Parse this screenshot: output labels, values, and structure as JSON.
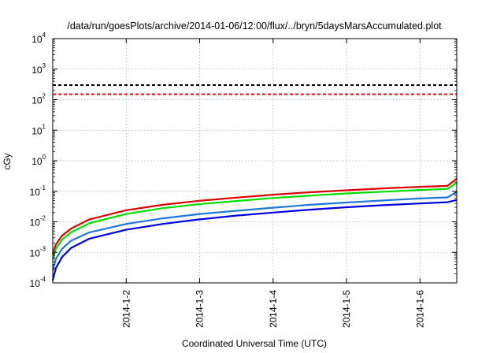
{
  "chart_data": {
    "type": "line",
    "title": "/data/run/goesPlots/archive/2014-01-06/12:00/flux/../bryn/5daysMarsAccumulated.plot",
    "xlabel": "Coordinated Universal Time (UTC)",
    "ylabel": "cGy",
    "yscale": "log",
    "ylim": [
      0.0001,
      10000
    ],
    "ytick_labels": [
      {
        "base": "10",
        "exp": "-4",
        "value": 0.0001
      },
      {
        "base": "10",
        "exp": "-3",
        "value": 0.001
      },
      {
        "base": "10",
        "exp": "-2",
        "value": 0.01
      },
      {
        "base": "10",
        "exp": "-1",
        "value": 0.1
      },
      {
        "base": "10",
        "exp": "0",
        "value": 1
      },
      {
        "base": "10",
        "exp": "1",
        "value": 10
      },
      {
        "base": "10",
        "exp": "2",
        "value": 100
      },
      {
        "base": "10",
        "exp": "3",
        "value": 1000
      },
      {
        "base": "10",
        "exp": "4",
        "value": 10000
      }
    ],
    "xlim": [
      "2014-01-01T00:00",
      "2014-01-06T12:00"
    ],
    "xticks": [
      {
        "label": "2014-1-2",
        "value": "2014-01-02T00:00"
      },
      {
        "label": "2014-1-3",
        "value": "2014-01-03T00:00"
      },
      {
        "label": "2014-1-4",
        "value": "2014-01-04T00:00"
      },
      {
        "label": "2014-1-5",
        "value": "2014-01-05T00:00"
      },
      {
        "label": "2014-1-6",
        "value": "2014-01-06T00:00"
      }
    ],
    "grid": true,
    "legend": "none",
    "threshold_lines": [
      {
        "value": 300,
        "color": "#000000",
        "style": "dashed"
      },
      {
        "value": 150,
        "color": "#ff0000",
        "style": "dashed"
      }
    ],
    "series": [
      {
        "color": "#dd0000",
        "x": [
          "2014-01-01T00:00",
          "2014-01-01T01:00",
          "2014-01-01T03:00",
          "2014-01-01T06:00",
          "2014-01-01T12:00",
          "2014-01-02T00:00",
          "2014-01-02T12:00",
          "2014-01-03T00:00",
          "2014-01-03T12:00",
          "2014-01-04T00:00",
          "2014-01-04T12:00",
          "2014-01-05T00:00",
          "2014-01-05T12:00",
          "2014-01-06T00:00",
          "2014-01-06T09:00",
          "2014-01-06T12:00"
        ],
        "y": [
          0.0009,
          0.0018,
          0.0035,
          0.006,
          0.012,
          0.024,
          0.036,
          0.049,
          0.062,
          0.077,
          0.093,
          0.108,
          0.124,
          0.14,
          0.15,
          0.26
        ]
      },
      {
        "color": "#00dd00",
        "x": [
          "2014-01-01T00:00",
          "2014-01-01T01:00",
          "2014-01-01T03:00",
          "2014-01-01T06:00",
          "2014-01-01T12:00",
          "2014-01-02T00:00",
          "2014-01-02T12:00",
          "2014-01-03T00:00",
          "2014-01-03T12:00",
          "2014-01-04T00:00",
          "2014-01-04T12:00",
          "2014-01-05T00:00",
          "2014-01-05T12:00",
          "2014-01-06T00:00",
          "2014-01-06T09:00",
          "2014-01-06T12:00"
        ],
        "y": [
          0.0006,
          0.0013,
          0.0026,
          0.0045,
          0.009,
          0.018,
          0.028,
          0.038,
          0.048,
          0.06,
          0.072,
          0.085,
          0.097,
          0.11,
          0.12,
          0.19
        ]
      },
      {
        "color": "#1e78dc",
        "x": [
          "2014-01-01T00:00",
          "2014-01-01T01:00",
          "2014-01-01T03:00",
          "2014-01-01T06:00",
          "2014-01-01T12:00",
          "2014-01-02T00:00",
          "2014-01-02T12:00",
          "2014-01-03T00:00",
          "2014-01-03T12:00",
          "2014-01-04T00:00",
          "2014-01-04T12:00",
          "2014-01-05T00:00",
          "2014-01-05T12:00",
          "2014-01-06T00:00",
          "2014-01-06T09:00",
          "2014-01-06T12:00"
        ],
        "y": [
          0.00025,
          0.0006,
          0.0013,
          0.0024,
          0.0045,
          0.0085,
          0.013,
          0.018,
          0.023,
          0.029,
          0.036,
          0.043,
          0.05,
          0.058,
          0.063,
          0.095
        ]
      },
      {
        "color": "#0000dd",
        "x": [
          "2014-01-01T00:00",
          "2014-01-01T01:00",
          "2014-01-01T03:00",
          "2014-01-01T06:00",
          "2014-01-01T12:00",
          "2014-01-02T00:00",
          "2014-01-02T12:00",
          "2014-01-03T00:00",
          "2014-01-03T12:00",
          "2014-01-04T00:00",
          "2014-01-04T12:00",
          "2014-01-05T00:00",
          "2014-01-05T12:00",
          "2014-01-06T00:00",
          "2014-01-06T09:00",
          "2014-01-06T12:00"
        ],
        "y": [
          0.00012,
          0.0003,
          0.0007,
          0.0014,
          0.0028,
          0.0055,
          0.0085,
          0.012,
          0.016,
          0.02,
          0.025,
          0.03,
          0.035,
          0.04,
          0.044,
          0.052
        ]
      }
    ]
  }
}
